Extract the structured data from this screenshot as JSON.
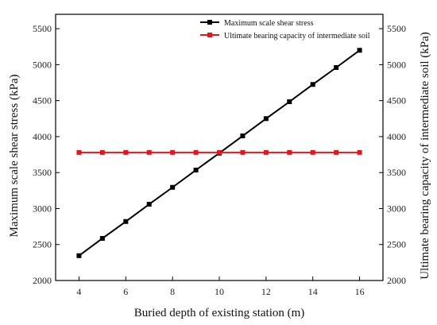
{
  "chart_data": {
    "type": "line",
    "x": [
      4,
      5,
      6,
      7,
      8,
      9,
      10,
      11,
      12,
      13,
      14,
      15,
      16
    ],
    "series": [
      {
        "name": "Maximum scale shear stress",
        "color": "#000000",
        "axis": "left",
        "values": [
          2345,
          2585,
          2820,
          3060,
          3295,
          3535,
          3770,
          4010,
          4250,
          4485,
          4725,
          4960,
          5200
        ]
      },
      {
        "name": "Ultimate bearing capacity of intermediate soil",
        "color": "#e8141b",
        "axis": "right",
        "values": [
          3780,
          3780,
          3780,
          3780,
          3780,
          3780,
          3780,
          3780,
          3780,
          3780,
          3780,
          3780,
          3780
        ]
      }
    ],
    "xlabel": "Buried depth of existing station (m)",
    "ylabel_left": "Maximum scale shear stress (kPa)",
    "ylabel_right": "Ultimate bearing capacity of intermediate soil (kPa)",
    "xlim": [
      3,
      17
    ],
    "ylim": [
      2000,
      5700
    ],
    "xticks": [
      "4",
      "6",
      "8",
      "10",
      "12",
      "14",
      "16"
    ],
    "yticks": [
      "2000",
      "2500",
      "3000",
      "3500",
      "4000",
      "4500",
      "5000",
      "5500"
    ],
    "grid": false,
    "legend": "top-right"
  }
}
